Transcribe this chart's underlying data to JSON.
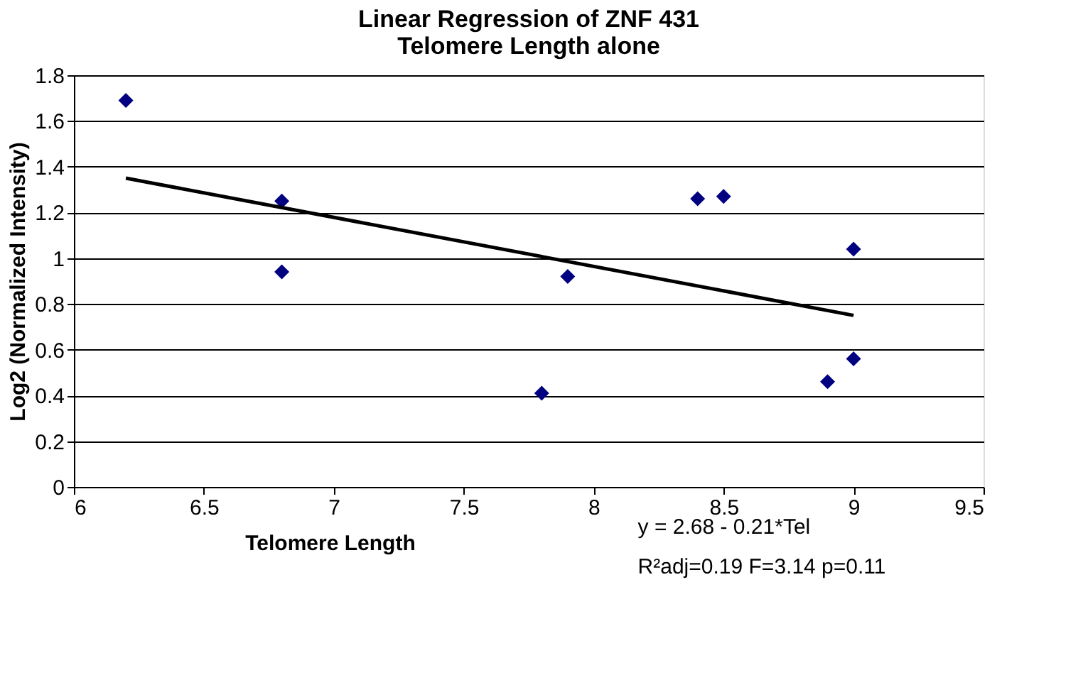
{
  "chart_data": {
    "type": "scatter",
    "title": [
      "Linear Regression of ZNF 431",
      "Telomere Length alone"
    ],
    "xlabel": "Telomere Length",
    "ylabel": "Log2 (Normalized Intensity)",
    "series": [
      {
        "color": "#000080",
        "marker": "diamond",
        "x": [
          6.2,
          6.8,
          6.8,
          7.8,
          7.9,
          8.4,
          8.5,
          8.9,
          9.0,
          9.0
        ],
        "values": [
          1.69,
          1.25,
          0.94,
          0.41,
          0.92,
          1.26,
          1.27,
          0.46,
          1.04,
          0.56
        ]
      },
      {
        "type": "line",
        "line_style": "solid",
        "color": "#000000",
        "x": [
          6.2,
          9.0
        ],
        "values": [
          1.35,
          0.75
        ]
      }
    ],
    "xlim": [
      6,
      9.5
    ],
    "xticks": [
      6,
      6.5,
      7,
      7.5,
      8,
      8.5,
      9,
      9.5
    ],
    "ylim": [
      0,
      1.8
    ],
    "yticks": [
      0,
      0.2,
      0.4,
      0.6,
      0.8,
      1,
      1.2,
      1.4,
      1.6,
      1.8
    ],
    "grid": "y",
    "annotations": [
      "y = 2.68 - 0.21*Tel",
      "R²adj=0.19  F=3.14  p=0.11"
    ]
  }
}
